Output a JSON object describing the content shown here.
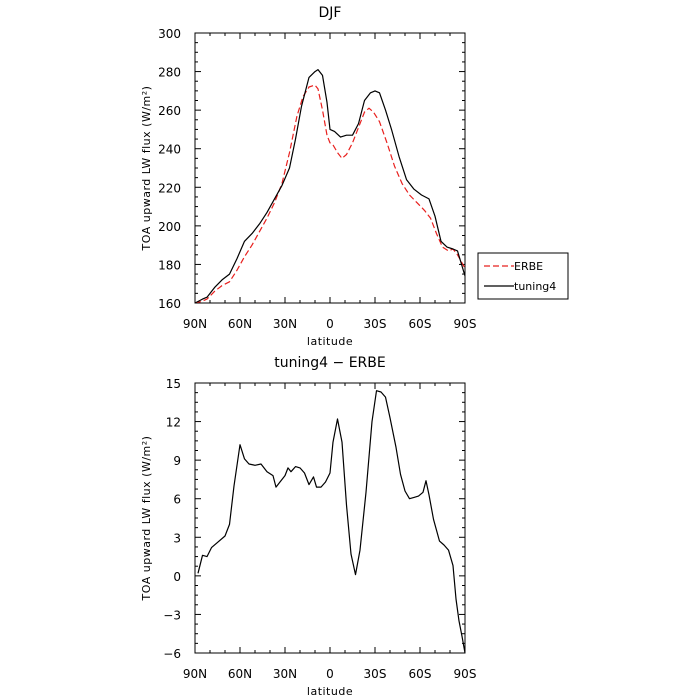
{
  "chart_data": [
    {
      "type": "line",
      "title": "DJF",
      "xlabel": "latitude",
      "ylabel": "TOA upward LW flux (W/m²)",
      "xlim": [
        -90,
        90
      ],
      "ylim": [
        160,
        300
      ],
      "x_ticks": [
        -90,
        -60,
        -30,
        0,
        30,
        60,
        90
      ],
      "x_tick_labels": [
        "90N",
        "60N",
        "30N",
        "0",
        "30S",
        "60S",
        "90S"
      ],
      "y_ticks": [
        160,
        180,
        200,
        220,
        240,
        260,
        280,
        300
      ],
      "y_tick_labels": [
        "160",
        "180",
        "200",
        "220",
        "240",
        "260",
        "280",
        "300"
      ],
      "legend": {
        "placement": "right-outside",
        "entries": [
          "ERBE",
          "tuning4"
        ]
      },
      "series": [
        {
          "name": "ERBE",
          "color": "#e8201e",
          "style": "dashed",
          "points": [
            [
              -90,
              160
            ],
            [
              -85,
              161
            ],
            [
              -82,
              162
            ],
            [
              -77,
              166
            ],
            [
              -72,
              169
            ],
            [
              -67,
              171
            ],
            [
              -62,
              177
            ],
            [
              -57,
              184
            ],
            [
              -52,
              190
            ],
            [
              -47,
              197
            ],
            [
              -42,
              204
            ],
            [
              -37,
              212
            ],
            [
              -32,
              222
            ],
            [
              -27,
              238
            ],
            [
              -22,
              257
            ],
            [
              -18,
              267
            ],
            [
              -14,
              272
            ],
            [
              -10,
              273
            ],
            [
              -8,
              271
            ],
            [
              -5,
              260
            ],
            [
              -2,
              247
            ],
            [
              0,
              243
            ],
            [
              2,
              242
            ],
            [
              5,
              238
            ],
            [
              8,
              235
            ],
            [
              11,
              237
            ],
            [
              15,
              243
            ],
            [
              19,
              251
            ],
            [
              23,
              259
            ],
            [
              26,
              261
            ],
            [
              29,
              259
            ],
            [
              33,
              254
            ],
            [
              38,
              243
            ],
            [
              43,
              231
            ],
            [
              48,
              222
            ],
            [
              53,
              216
            ],
            [
              58,
              212
            ],
            [
              63,
              208
            ],
            [
              67,
              204
            ],
            [
              71,
              196
            ],
            [
              75,
              189
            ],
            [
              79,
              187
            ],
            [
              82,
              188
            ],
            [
              85,
              185
            ],
            [
              90,
              178
            ]
          ]
        },
        {
          "name": "tuning4",
          "color": "#000000",
          "style": "solid",
          "points": [
            [
              -90,
              160
            ],
            [
              -85,
              162
            ],
            [
              -82,
              163
            ],
            [
              -77,
              168
            ],
            [
              -72,
              172
            ],
            [
              -67,
              175
            ],
            [
              -62,
              183
            ],
            [
              -57,
              192
            ],
            [
              -52,
              196
            ],
            [
              -47,
              201
            ],
            [
              -42,
              207
            ],
            [
              -37,
              214
            ],
            [
              -32,
              221
            ],
            [
              -27,
              230
            ],
            [
              -23,
              245
            ],
            [
              -19,
              262
            ],
            [
              -14,
              277
            ],
            [
              -10,
              280
            ],
            [
              -8,
              281
            ],
            [
              -5,
              278
            ],
            [
              -2,
              264
            ],
            [
              0,
              250
            ],
            [
              3,
              249
            ],
            [
              7,
              246
            ],
            [
              11,
              247
            ],
            [
              15,
              247
            ],
            [
              19,
              253
            ],
            [
              23,
              265
            ],
            [
              27,
              269
            ],
            [
              30,
              270
            ],
            [
              33,
              269
            ],
            [
              37,
              260
            ],
            [
              41,
              250
            ],
            [
              46,
              236
            ],
            [
              51,
              224
            ],
            [
              56,
              219
            ],
            [
              61,
              216
            ],
            [
              66,
              214
            ],
            [
              70,
              205
            ],
            [
              74,
              192
            ],
            [
              78,
              189
            ],
            [
              82,
              188
            ],
            [
              85,
              187
            ],
            [
              90,
              174
            ]
          ]
        }
      ]
    },
    {
      "type": "line",
      "title": "tuning4 − ERBE",
      "xlabel": "latitude",
      "ylabel": "TOA upward LW flux (W/m²)",
      "xlim": [
        -90,
        90
      ],
      "ylim": [
        -6,
        15
      ],
      "x_ticks": [
        -90,
        -60,
        -30,
        0,
        30,
        60,
        90
      ],
      "x_tick_labels": [
        "90N",
        "60N",
        "30N",
        "0",
        "30S",
        "60S",
        "90S"
      ],
      "y_ticks": [
        -6,
        -3,
        0,
        3,
        6,
        9,
        12,
        15
      ],
      "y_tick_labels": [
        "−6",
        "−3",
        "0",
        "3",
        "6",
        "9",
        "12",
        "15"
      ],
      "series": [
        {
          "color": "#000000",
          "style": "solid",
          "points": [
            [
              -88,
              0.2
            ],
            [
              -85,
              1.6
            ],
            [
              -82,
              1.5
            ],
            [
              -79,
              2.2
            ],
            [
              -75,
              2.6
            ],
            [
              -70,
              3.1
            ],
            [
              -67,
              4.0
            ],
            [
              -64,
              7.0
            ],
            [
              -62,
              8.6
            ],
            [
              -60,
              10.2
            ],
            [
              -57,
              9.1
            ],
            [
              -54,
              8.7
            ],
            [
              -50,
              8.6
            ],
            [
              -46,
              8.7
            ],
            [
              -42,
              8.1
            ],
            [
              -38,
              7.8
            ],
            [
              -36,
              6.9
            ],
            [
              -34,
              7.2
            ],
            [
              -30,
              7.8
            ],
            [
              -28,
              8.4
            ],
            [
              -26,
              8.1
            ],
            [
              -23,
              8.5
            ],
            [
              -20,
              8.4
            ],
            [
              -17,
              8.0
            ],
            [
              -14,
              7.1
            ],
            [
              -11,
              7.7
            ],
            [
              -9,
              6.9
            ],
            [
              -6,
              6.9
            ],
            [
              -3,
              7.3
            ],
            [
              0,
              8.0
            ],
            [
              2,
              10.4
            ],
            [
              5,
              12.2
            ],
            [
              8,
              10.4
            ],
            [
              11,
              5.5
            ],
            [
              14,
              1.7
            ],
            [
              17,
              0.1
            ],
            [
              20,
              2.0
            ],
            [
              24,
              6.5
            ],
            [
              28,
              12.0
            ],
            [
              31,
              14.4
            ],
            [
              34,
              14.3
            ],
            [
              37,
              13.9
            ],
            [
              40,
              12.3
            ],
            [
              44,
              10.0
            ],
            [
              47,
              7.9
            ],
            [
              50,
              6.6
            ],
            [
              53,
              6.0
            ],
            [
              56,
              6.1
            ],
            [
              59,
              6.2
            ],
            [
              62,
              6.5
            ],
            [
              64,
              7.4
            ],
            [
              66,
              6.3
            ],
            [
              69,
              4.4
            ],
            [
              73,
              2.7
            ],
            [
              76,
              2.4
            ],
            [
              79,
              2.0
            ],
            [
              82,
              0.8
            ],
            [
              84,
              -1.8
            ],
            [
              86,
              -3.5
            ],
            [
              88,
              -4.7
            ],
            [
              90,
              -6.0
            ]
          ]
        }
      ]
    }
  ]
}
